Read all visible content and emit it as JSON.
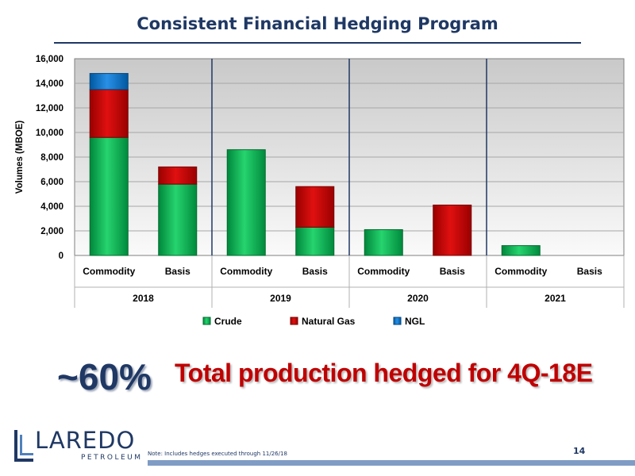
{
  "slide": {
    "title": "Consistent Financial Hedging Program",
    "callout_percent": "~60%",
    "callout_text": "Total production hedged for 4Q-18E",
    "footnote": "Note: Includes hedges executed through 11/26/18",
    "page_number": "14",
    "logo_wordmark": "LAREDO",
    "logo_subtext": "PETROLEUM"
  },
  "chart_data": {
    "type": "bar",
    "stacked": true,
    "ylabel": "Volumes (MBOE)",
    "ylim": [
      0,
      16000
    ],
    "yticks": [
      "0",
      "2,000",
      "4,000",
      "6,000",
      "8,000",
      "10,000",
      "12,000",
      "14,000",
      "16,000"
    ],
    "groups": [
      "2018",
      "2019",
      "2020",
      "2021"
    ],
    "categories": [
      "Commodity",
      "Basis",
      "Commodity",
      "Basis",
      "Commodity",
      "Basis",
      "Commodity",
      "Basis"
    ],
    "series": [
      {
        "name": "Crude",
        "color": "#00b050",
        "values": [
          9600,
          5800,
          8600,
          2300,
          2100,
          0,
          800,
          0
        ]
      },
      {
        "name": "Natural Gas",
        "color": "#c00000",
        "values": [
          3900,
          1400,
          0,
          3300,
          0,
          4100,
          0,
          0
        ]
      },
      {
        "name": "NGL",
        "color": "#0070c0",
        "values": [
          1300,
          0,
          0,
          0,
          0,
          0,
          0,
          0
        ]
      }
    ],
    "grid": true,
    "legend_position": "bottom"
  }
}
